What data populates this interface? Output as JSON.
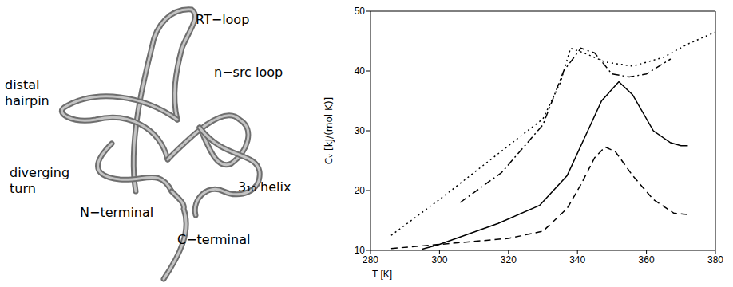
{
  "chart_data": {
    "type": "line",
    "xlabel": "T [K]",
    "ylabel": "Cᵥ [kJ/(mol K)]",
    "xlim": [
      280,
      380
    ],
    "xticks": [
      280,
      300,
      320,
      340,
      360,
      380
    ],
    "ylim": [
      10,
      50
    ],
    "yticks": [
      10,
      20,
      30,
      40,
      50
    ],
    "grid": false,
    "series": [
      {
        "color": "#000000",
        "line_style": "dotted",
        "x": [
          286,
          300,
          310,
          320,
          330,
          335,
          338,
          342,
          348,
          356,
          365,
          372,
          380
        ],
        "values": [
          12.5,
          18.5,
          23,
          27.5,
          32,
          38,
          43.8,
          43,
          41.5,
          40.8,
          42.3,
          44.5,
          46.5
        ]
      },
      {
        "color": "#000000",
        "line_style": "dashdot",
        "x": [
          306,
          318,
          330,
          336,
          341,
          345,
          350,
          355,
          360,
          367
        ],
        "values": [
          18,
          23,
          31,
          40,
          43.8,
          43,
          39.5,
          39,
          39.5,
          42
        ]
      },
      {
        "color": "#000000",
        "line_style": "solid",
        "x": [
          295,
          300,
          317,
          329,
          337,
          343,
          347,
          352,
          356,
          362,
          367,
          370,
          372
        ],
        "values": [
          10.2,
          11,
          14.5,
          17.5,
          22.5,
          30,
          35,
          38.2,
          36,
          30,
          28,
          27.5,
          27.5
        ]
      },
      {
        "color": "#000000",
        "line_style": "dashed",
        "x": [
          286,
          300,
          320,
          330,
          337,
          341,
          345,
          348,
          351,
          356,
          362,
          368,
          372
        ],
        "values": [
          10.3,
          11,
          12,
          13.2,
          17,
          21,
          25.5,
          27.3,
          26.5,
          22.5,
          18.5,
          16.2,
          16
        ]
      }
    ]
  },
  "structure": {
    "labels": [
      "RT−loop",
      "distal hairpin",
      "n−src loop",
      "diverging turn",
      "3₁₀ helix",
      "N−terminal",
      "C−terminal"
    ]
  }
}
